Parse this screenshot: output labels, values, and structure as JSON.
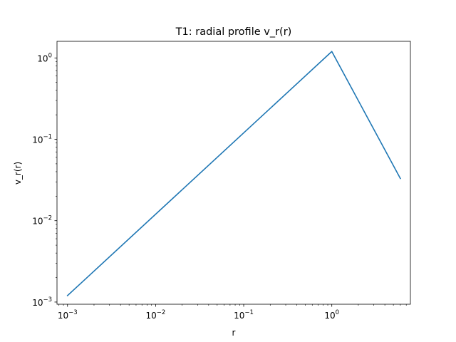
{
  "chart_data": {
    "type": "line",
    "title": "T1: radial profile v_r(r)",
    "xlabel": "r",
    "ylabel": "v_r(r)",
    "xscale": "log",
    "yscale": "log",
    "xlim": [
      0.00076,
      7.8
    ],
    "ylim": [
      0.00094,
      1.6
    ],
    "x_ticks": [
      {
        "value": 0.001,
        "base": "10",
        "exp": "−3"
      },
      {
        "value": 0.01,
        "base": "10",
        "exp": "−2"
      },
      {
        "value": 0.1,
        "base": "10",
        "exp": "−1"
      },
      {
        "value": 1,
        "base": "10",
        "exp": "0"
      }
    ],
    "y_ticks": [
      {
        "value": 0.001,
        "base": "10",
        "exp": "−3"
      },
      {
        "value": 0.01,
        "base": "10",
        "exp": "−2"
      },
      {
        "value": 0.1,
        "base": "10",
        "exp": "−1"
      },
      {
        "value": 1,
        "base": "10",
        "exp": "0"
      }
    ],
    "grid": false,
    "color": "#1f77b4",
    "series": [
      {
        "x": [
          0.001,
          1.0,
          6.0
        ],
        "y": [
          0.0012,
          1.2,
          0.033
        ]
      }
    ]
  }
}
